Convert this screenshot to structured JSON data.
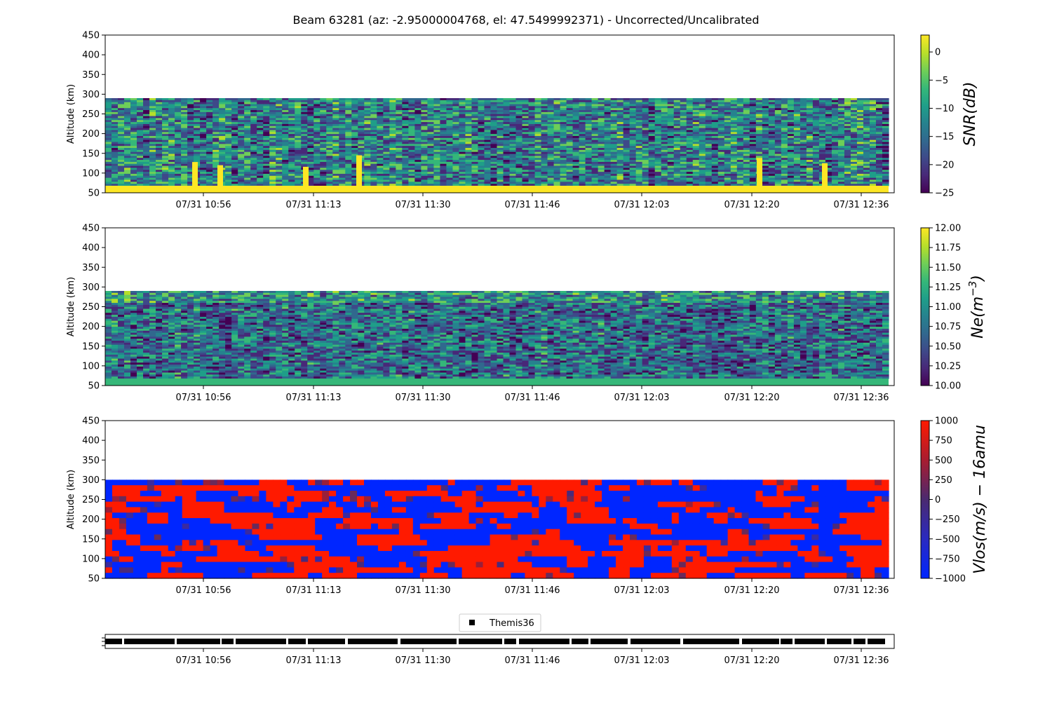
{
  "title": "Beam 63281 (az: -2.95000004768, el: 47.5499992371) - Uncorrected/Uncalibrated",
  "chart_data": [
    {
      "type": "heatmap",
      "panel": "snr",
      "ylabel": "Altitude (km)",
      "ylim": [
        50,
        450
      ],
      "y_ticks": [
        "50",
        "100",
        "150",
        "200",
        "250",
        "300",
        "350",
        "400",
        "450"
      ],
      "x_ticks": [
        "07/31 10:56",
        "07/31 11:13",
        "07/31 11:30",
        "07/31 11:46",
        "07/31 12:03",
        "07/31 12:20",
        "07/31 12:36"
      ],
      "data_altitude_range": [
        50,
        290
      ],
      "colormap": "viridis",
      "colorbar": {
        "label": "SNR(dB)",
        "range": [
          -25,
          3
        ],
        "ticks": [
          "0",
          "−5",
          "−10",
          "−15",
          "−20",
          "−25"
        ],
        "tick_values": [
          0,
          -5,
          -10,
          -15,
          -20,
          -25
        ]
      }
    },
    {
      "type": "heatmap",
      "panel": "ne",
      "ylabel": "Altitude (km)",
      "ylim": [
        50,
        450
      ],
      "y_ticks": [
        "50",
        "100",
        "150",
        "200",
        "250",
        "300",
        "350",
        "400",
        "450"
      ],
      "x_ticks": [
        "07/31 10:56",
        "07/31 11:13",
        "07/31 11:30",
        "07/31 11:46",
        "07/31 12:03",
        "07/31 12:20",
        "07/31 12:36"
      ],
      "data_altitude_range": [
        50,
        290
      ],
      "colormap": "viridis",
      "colorbar": {
        "label": "Ne(m",
        "label_sup": "−3",
        "label_end": ")",
        "range": [
          10,
          12
        ],
        "ticks": [
          "12.00",
          "11.75",
          "11.50",
          "11.25",
          "11.00",
          "10.75",
          "10.50",
          "10.25",
          "10.00"
        ],
        "tick_values": [
          12,
          11.75,
          11.5,
          11.25,
          11,
          10.75,
          10.5,
          10.25,
          10
        ]
      }
    },
    {
      "type": "heatmap",
      "panel": "vlos",
      "ylabel": "Altitude (km)",
      "ylim": [
        50,
        450
      ],
      "y_ticks": [
        "50",
        "100",
        "150",
        "200",
        "250",
        "300",
        "350",
        "400",
        "450"
      ],
      "x_ticks": [
        "07/31 10:56",
        "07/31 11:13",
        "07/31 11:30",
        "07/31 11:46",
        "07/31 12:03",
        "07/31 12:20",
        "07/31 12:36"
      ],
      "data_altitude_range": [
        50,
        300
      ],
      "colormap": "blue-red",
      "colorbar": {
        "label": "Vlos(m/s) − 16amu",
        "range": [
          -1000,
          1000
        ],
        "ticks": [
          "1000",
          "750",
          "500",
          "250",
          "0",
          "−250",
          "−500",
          "−750",
          "−1000"
        ],
        "tick_values": [
          1000,
          750,
          500,
          250,
          0,
          -250,
          -500,
          -750,
          -1000
        ]
      }
    },
    {
      "type": "scatter",
      "panel": "themis",
      "legend": "Themis36",
      "x_ticks": [
        "07/31 10:56",
        "07/31 11:13",
        "07/31 11:30",
        "07/31 11:46",
        "07/31 12:03",
        "07/31 12:20",
        "07/31 12:36"
      ]
    }
  ],
  "colors": {
    "viridis": [
      "#440154",
      "#482878",
      "#3e4989",
      "#31688e",
      "#26828e",
      "#1f9e89",
      "#35b779",
      "#6ece58",
      "#b5de2b",
      "#fde725"
    ],
    "vlos": [
      "#0026ff",
      "#1a2bd6",
      "#3a2aa0",
      "#4a2a7a",
      "#6a2a5a",
      "#9a1f3a",
      "#c81a22",
      "#ff1a00"
    ]
  }
}
